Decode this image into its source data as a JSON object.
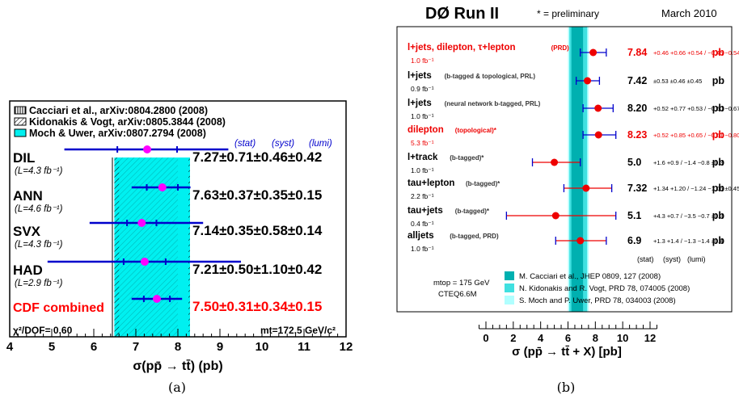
{
  "panel_a": {
    "legend": [
      "Cacciari et al., arXiv:0804.2800 (2008)",
      "Kidonakis & Vogt, arXiv:0805.3844 (2008)",
      "Moch & Uwer, arXiv:0807.2794 (2008)"
    ],
    "uncert_headers": [
      "(stat)",
      "(syst)",
      "(lumi)"
    ],
    "chi2": "χ²/DOF= 0.60",
    "mt": "mt=172.5 GeV/c²",
    "xlabel": "σ(pp̄ → tt̄) (pb)",
    "caption": "(a)",
    "colors": {
      "band": "#00f0f0",
      "marker": "#ff00ff",
      "error": "#0000cc",
      "highlight": "#ff0000"
    }
  },
  "panel_b": {
    "title": "DØ Run II",
    "title_note": "* = preliminary",
    "date": "March 2010",
    "theory_legend": [
      "M. Cacciari et al., JHEP 0809, 127 (2008)",
      "N. Kidonakis and R. Vogt, PRD 78, 074005 (2008)",
      "S. Moch and P. Uwer, PRD 78, 034003 (2008)"
    ],
    "theory_notes": [
      "mtop = 175 GeV",
      "CTEQ6.6M"
    ],
    "uncert_footer": [
      "(stat)",
      "(syst)",
      "(lumi)"
    ],
    "xlabel": "σ (pp̄ → tt̄ + X) [pb]",
    "caption": "(b)",
    "colors": {
      "band1": "#00b0b0",
      "band2": "#40e0e0",
      "band3": "#b0ffff",
      "marker": "#ee0000",
      "error_blue": "#0000cc",
      "highlight": "#ee0000"
    }
  },
  "chart_data": [
    {
      "type": "scatter",
      "title": "",
      "xlabel": "σ(pp̄ → tt̄) (pb)",
      "ylabel": "",
      "xlim": [
        4,
        12
      ],
      "xticks": [
        4,
        5,
        6,
        7,
        8,
        9,
        10,
        11,
        12
      ],
      "theory_band": [
        6.45,
        8.25
      ],
      "points": [
        {
          "name": "DIL",
          "lumi": "(L=4.3 fb⁻¹)",
          "value": 7.27,
          "stat": 0.71,
          "syst": 0.46,
          "lumi_err": 0.42,
          "text": "7.27±0.71±0.46±0.42",
          "x_lo": 5.3,
          "x_hi": 9.2,
          "highlight": false
        },
        {
          "name": "ANN",
          "lumi": "(L=4.6 fb⁻¹)",
          "value": 7.63,
          "stat": 0.37,
          "syst": 0.35,
          "lumi_err": 0.15,
          "text": "7.63±0.37±0.35±0.15",
          "x_lo": 6.9,
          "x_hi": 8.3,
          "highlight": false
        },
        {
          "name": "SVX",
          "lumi": "(L=4.3 fb⁻¹)",
          "value": 7.14,
          "stat": 0.35,
          "syst": 0.58,
          "lumi_err": 0.14,
          "text": "7.14±0.35±0.58±0.14",
          "x_lo": 5.9,
          "x_hi": 8.6,
          "highlight": false
        },
        {
          "name": "HAD",
          "lumi": "(L=2.9 fb⁻¹)",
          "value": 7.21,
          "stat": 0.5,
          "syst": 1.1,
          "lumi_err": 0.42,
          "text": "7.21±0.50±1.10±0.42",
          "x_lo": 4.9,
          "x_hi": 9.5,
          "highlight": false
        },
        {
          "name": "CDF combined",
          "lumi": "",
          "value": 7.5,
          "stat": 0.31,
          "syst": 0.34,
          "lumi_err": 0.15,
          "text": "7.50±0.31±0.34±0.15",
          "x_lo": 6.9,
          "x_hi": 8.1,
          "highlight": true
        }
      ]
    },
    {
      "type": "scatter",
      "title": "DØ Run II",
      "xlabel": "σ (pp̄ → tt̄ + X) [pb]",
      "ylabel": "",
      "xlim": [
        0,
        12
      ],
      "xticks": [
        0,
        2,
        4,
        6,
        8,
        10,
        12
      ],
      "theory_band": [
        6.0,
        7.5
      ],
      "points": [
        {
          "name": "l+jets, dilepton, τ+lepton",
          "qual": "(PRD)",
          "lumi": "1.0 fb⁻¹",
          "value": 7.84,
          "uncert": "+0.46 +0.66 +0.54 / −0.45 −0.54 −0.46",
          "x_lo": 6.9,
          "x_hi": 8.8,
          "highlight": true
        },
        {
          "name": "l+jets",
          "qual": "(b-tagged & topological, PRL)",
          "lumi": "0.9 fb⁻¹",
          "value": 7.42,
          "uncert": "±0.53 ±0.46 ±0.45",
          "x_lo": 6.6,
          "x_hi": 8.3,
          "highlight": false
        },
        {
          "name": "l+jets",
          "qual": "(neural network b-tagged, PRL)",
          "lumi": "1.0 fb⁻¹",
          "value": 8.2,
          "uncert": "+0.52 +0.77 +0.53 / −0.50 −0.67 −0.45",
          "x_lo": 7.1,
          "x_hi": 9.3,
          "highlight": false
        },
        {
          "name": "dilepton",
          "qual": "(topological)*",
          "lumi": "5.3 fb⁻¹",
          "value": 8.23,
          "uncert": "+0.52 +0.85 +0.65 / −0.51 −0.80 −0.57",
          "x_lo": 7.1,
          "x_hi": 9.5,
          "highlight": true
        },
        {
          "name": "l+track",
          "qual": "(b-tagged)*",
          "lumi": "1.0 fb⁻¹",
          "value": 5.0,
          "uncert": "+1.6 +0.9 / −1.4 −0.8 ±0.3",
          "x_lo": 3.4,
          "x_hi": 6.9,
          "highlight": false
        },
        {
          "name": "tau+lepton",
          "qual": "(b-tagged)*",
          "lumi": "2.2 fb⁻¹",
          "value": 7.32,
          "uncert": "+1.34 +1.20 / −1.24 −1.06 ±0.45",
          "x_lo": 5.7,
          "x_hi": 9.2,
          "highlight": false
        },
        {
          "name": "tau+jets",
          "qual": "(b-tagged)*",
          "lumi": "0.4 fb⁻¹",
          "value": 5.1,
          "uncert": "+4.3 +0.7 / −3.5 −0.7 ±0.3",
          "x_lo": 1.5,
          "x_hi": 9.5,
          "highlight": false
        },
        {
          "name": "alljets",
          "qual": "(b-tagged, PRD)",
          "lumi": "1.0 fb⁻¹",
          "value": 6.9,
          "uncert": "+1.3 +1.4 / −1.3 −1.4 ±0.4",
          "x_lo": 5.1,
          "x_hi": 8.8,
          "highlight": false
        }
      ]
    }
  ]
}
